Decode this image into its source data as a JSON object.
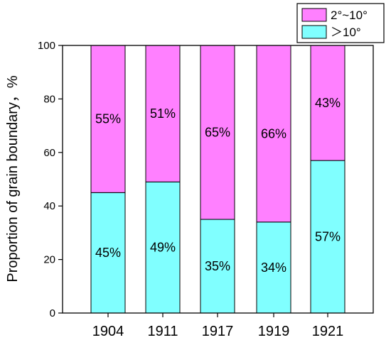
{
  "chart_data": {
    "type": "bar",
    "stacked": true,
    "categories": [
      "1904",
      "1911",
      "1917",
      "1919",
      "1921"
    ],
    "series": [
      {
        "name": "＞10°",
        "values": [
          45,
          49,
          35,
          34,
          57
        ],
        "labels": [
          "45%",
          "49%",
          "35%",
          "34%",
          "57%"
        ],
        "color": "#80ffff"
      },
      {
        "name": "2°~10°",
        "values": [
          55,
          51,
          65,
          66,
          43
        ],
        "labels": [
          "55%",
          "51%",
          "65%",
          "66%",
          "43%"
        ],
        "color": "#ff80ff"
      }
    ],
    "title": "",
    "xlabel": "",
    "ylabel": "Proportion of grain boundary，%",
    "ylim": [
      0,
      100
    ],
    "yticks": [
      "0",
      "20",
      "40",
      "60",
      "80",
      "100"
    ],
    "grid": false,
    "legend_position": "top-right"
  }
}
